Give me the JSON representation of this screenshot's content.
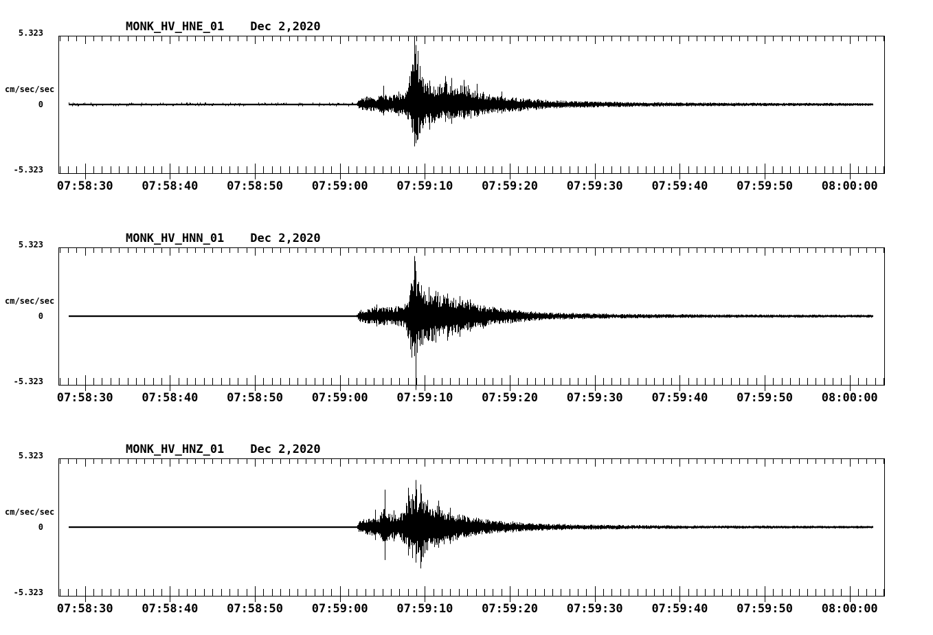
{
  "page": {
    "background_color": "#ffffff",
    "trace_color": "#000000",
    "text_color": "#000000"
  },
  "chart_data": {
    "type": "line",
    "kind": "seismogram-3-component-velocity-trace",
    "date_label": "Dec 2,2020",
    "units_label": "cm/sec/sec",
    "ylim": [
      -5.323,
      5.323
    ],
    "y_tick_labels": {
      "top": "5.323",
      "zero": "0",
      "bottom": "-5.323"
    },
    "grid": false,
    "legend": false,
    "x_axis": {
      "t_min_s": 26.87,
      "t_max_s": 124.06,
      "minor_tick_interval_s": 1,
      "major_tick_interval_s": 10,
      "major_ticks": [
        {
          "t": 30,
          "label": "07:58:30"
        },
        {
          "t": 40,
          "label": "07:58:40"
        },
        {
          "t": 50,
          "label": "07:58:50"
        },
        {
          "t": 60,
          "label": "07:59:00"
        },
        {
          "t": 70,
          "label": "07:59:10"
        },
        {
          "t": 80,
          "label": "07:59:20"
        },
        {
          "t": 90,
          "label": "07:59:30"
        },
        {
          "t": 100,
          "label": "07:59:40"
        },
        {
          "t": 110,
          "label": "07:59:50"
        },
        {
          "t": 120,
          "label": "08:00:00"
        }
      ]
    },
    "panels": [
      {
        "station": "MONK_HV_HNE_01",
        "seed": 7,
        "noisy_baseline": true,
        "trace_start_s": 28.1,
        "trace_end_s": 122.7,
        "envelope": [
          [
            28.1,
            0.05,
            0.05
          ],
          [
            61.9,
            0.05,
            0.05
          ],
          [
            62.3,
            0.42,
            0.42
          ],
          [
            63.0,
            0.55,
            0.5
          ],
          [
            64.2,
            0.6,
            0.55
          ],
          [
            65.0,
            0.8,
            0.7
          ],
          [
            66.2,
            0.7,
            0.65
          ],
          [
            67.5,
            0.9,
            0.8
          ],
          [
            68.1,
            1.9,
            1.3
          ],
          [
            68.5,
            3.4,
            2.3
          ],
          [
            68.8,
            4.9,
            3.2
          ],
          [
            69.1,
            4.2,
            2.8
          ],
          [
            69.5,
            2.8,
            1.8
          ],
          [
            70.0,
            1.8,
            1.5
          ],
          [
            70.7,
            1.6,
            1.7
          ],
          [
            71.4,
            1.4,
            1.3
          ],
          [
            72.3,
            1.9,
            1.2
          ],
          [
            73.0,
            1.7,
            1.3
          ],
          [
            73.7,
            1.6,
            1.2
          ],
          [
            74.5,
            1.5,
            1.1
          ],
          [
            75.6,
            1.2,
            0.95
          ],
          [
            76.6,
            0.9,
            0.8
          ],
          [
            78.0,
            0.75,
            0.7
          ],
          [
            79.5,
            0.6,
            0.6
          ],
          [
            81.2,
            0.5,
            0.5
          ],
          [
            82.8,
            0.4,
            0.4
          ],
          [
            84.8,
            0.32,
            0.32
          ],
          [
            88.0,
            0.26,
            0.26
          ],
          [
            92.0,
            0.2,
            0.2
          ],
          [
            97.0,
            0.17,
            0.17
          ],
          [
            103.0,
            0.14,
            0.14
          ],
          [
            109.0,
            0.13,
            0.13
          ],
          [
            117.0,
            0.12,
            0.12
          ],
          [
            122.7,
            0.11,
            0.11
          ]
        ],
        "spikes": [
          [
            65.1,
            1.45,
            0.85
          ],
          [
            66.9,
            1.0,
            0.9
          ],
          [
            68.75,
            5.28,
            3.25
          ],
          [
            68.95,
            4.6,
            3.0
          ],
          [
            69.2,
            4.15,
            2.7
          ],
          [
            70.5,
            1.85,
            1.95
          ],
          [
            72.4,
            2.2,
            1.35
          ],
          [
            73.1,
            2.05,
            1.5
          ],
          [
            74.6,
            1.9,
            1.15
          ],
          [
            76.1,
            1.6,
            0.95
          ],
          [
            79.0,
            1.0,
            0.7
          ]
        ]
      },
      {
        "station": "MONK_HV_HNN_01",
        "seed": 13,
        "noisy_baseline": false,
        "trace_start_s": 28.1,
        "trace_end_s": 122.7,
        "envelope": [
          [
            28.1,
            0.05,
            0.05
          ],
          [
            61.9,
            0.05,
            0.05
          ],
          [
            62.3,
            0.5,
            0.5
          ],
          [
            63.5,
            0.62,
            0.6
          ],
          [
            65.0,
            0.75,
            0.7
          ],
          [
            66.5,
            0.72,
            0.72
          ],
          [
            67.6,
            0.9,
            0.9
          ],
          [
            68.2,
            2.0,
            2.2
          ],
          [
            68.6,
            3.5,
            3.4
          ],
          [
            68.85,
            4.4,
            3.4
          ],
          [
            69.1,
            3.3,
            3.1
          ],
          [
            69.5,
            2.4,
            2.6
          ],
          [
            70.0,
            1.9,
            2.1
          ],
          [
            70.8,
            1.85,
            2.0
          ],
          [
            71.6,
            1.7,
            1.8
          ],
          [
            72.5,
            1.5,
            1.6
          ],
          [
            73.5,
            1.4,
            1.5
          ],
          [
            74.5,
            1.2,
            1.2
          ],
          [
            75.7,
            1.05,
            1.0
          ],
          [
            77.0,
            0.85,
            0.85
          ],
          [
            78.3,
            0.7,
            0.7
          ],
          [
            79.9,
            0.55,
            0.55
          ],
          [
            81.6,
            0.42,
            0.42
          ],
          [
            83.6,
            0.32,
            0.32
          ],
          [
            86.0,
            0.26,
            0.26
          ],
          [
            89.0,
            0.21,
            0.21
          ],
          [
            93.0,
            0.18,
            0.18
          ],
          [
            98.0,
            0.15,
            0.15
          ],
          [
            105.0,
            0.13,
            0.13
          ],
          [
            113.0,
            0.12,
            0.12
          ],
          [
            122.7,
            0.11,
            0.11
          ]
        ],
        "spikes": [
          [
            64.3,
            0.9,
            0.8
          ],
          [
            68.78,
            4.65,
            3.1
          ],
          [
            68.9,
            3.5,
            5.72
          ],
          [
            69.6,
            1.7,
            2.15
          ],
          [
            70.45,
            2.25,
            1.85
          ],
          [
            71.25,
            1.95,
            2.05
          ],
          [
            72.65,
            1.75,
            1.9
          ],
          [
            74.1,
            1.55,
            1.6
          ],
          [
            75.3,
            1.3,
            1.2
          ]
        ]
      },
      {
        "station": "MONK_HV_HNZ_01",
        "seed": 29,
        "noisy_baseline": false,
        "trace_start_s": 28.1,
        "trace_end_s": 122.7,
        "envelope": [
          [
            28.1,
            0.05,
            0.05
          ],
          [
            61.9,
            0.05,
            0.05
          ],
          [
            62.3,
            0.55,
            0.55
          ],
          [
            63.3,
            0.68,
            0.62
          ],
          [
            64.5,
            0.78,
            0.72
          ],
          [
            65.2,
            1.5,
            1.3
          ],
          [
            65.9,
            0.95,
            0.9
          ],
          [
            66.9,
            1.05,
            1.0
          ],
          [
            67.7,
            1.5,
            1.4
          ],
          [
            68.1,
            2.4,
            2.0
          ],
          [
            68.5,
            2.3,
            2.2
          ],
          [
            68.9,
            3.1,
            2.6
          ],
          [
            69.2,
            2.6,
            2.4
          ],
          [
            69.5,
            2.8,
            2.8
          ],
          [
            70.1,
            1.9,
            1.9
          ],
          [
            70.8,
            1.6,
            1.6
          ],
          [
            71.5,
            1.8,
            1.5
          ],
          [
            72.4,
            1.3,
            1.3
          ],
          [
            73.4,
            1.15,
            1.1
          ],
          [
            74.6,
            0.9,
            0.85
          ],
          [
            75.9,
            0.75,
            0.7
          ],
          [
            77.3,
            0.6,
            0.55
          ],
          [
            78.9,
            0.48,
            0.45
          ],
          [
            80.7,
            0.38,
            0.36
          ],
          [
            82.7,
            0.3,
            0.3
          ],
          [
            85.0,
            0.24,
            0.24
          ],
          [
            88.0,
            0.2,
            0.2
          ],
          [
            92.0,
            0.17,
            0.17
          ],
          [
            97.0,
            0.14,
            0.14
          ],
          [
            104.0,
            0.12,
            0.12
          ],
          [
            113.0,
            0.11,
            0.11
          ],
          [
            122.7,
            0.1,
            0.1
          ]
        ],
        "spikes": [
          [
            64.15,
            1.35,
            1.0
          ],
          [
            65.25,
            2.9,
            2.55
          ],
          [
            66.3,
            1.3,
            1.1
          ],
          [
            68.05,
            3.05,
            2.2
          ],
          [
            68.55,
            2.55,
            2.4
          ],
          [
            68.9,
            3.65,
            2.75
          ],
          [
            69.45,
            3.3,
            3.2
          ],
          [
            70.3,
            2.1,
            1.8
          ],
          [
            71.55,
            2.05,
            1.6
          ],
          [
            73.0,
            1.5,
            1.3
          ]
        ]
      }
    ]
  }
}
